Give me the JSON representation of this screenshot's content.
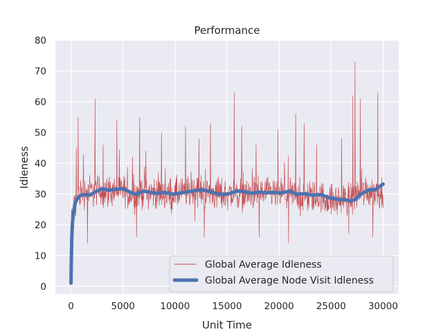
{
  "chart_data": {
    "type": "line",
    "title": "Performance",
    "xlabel": "Unit Time",
    "ylabel": "Idleness",
    "xlim": [
      -1500,
      31500
    ],
    "ylim": [
      -2.5,
      80
    ],
    "xticks": [
      0,
      5000,
      10000,
      15000,
      20000,
      25000,
      30000
    ],
    "yticks": [
      0,
      10,
      20,
      30,
      40,
      50,
      60,
      70,
      80
    ],
    "grid": true,
    "legend": {
      "position": "bottom-right",
      "entries": [
        "Global Average Idleness",
        "Global Average Node Visit Idleness"
      ]
    },
    "colors": {
      "background": "#eaeaf2",
      "grid": "#ffffff",
      "idleness": "#c44e52",
      "visit_idleness": "#4c72b0"
    },
    "series": [
      {
        "name": "Global Average Idleness",
        "style": "thin",
        "x_start": 0,
        "x_step": 30,
        "base_points": [
          [
            0,
            22
          ],
          [
            300,
            26
          ],
          [
            800,
            30
          ],
          [
            1500,
            31
          ],
          [
            2500,
            31
          ],
          [
            3500,
            31
          ],
          [
            5000,
            31
          ],
          [
            6000,
            30
          ],
          [
            7000,
            31
          ],
          [
            9000,
            30
          ],
          [
            10000,
            30
          ],
          [
            12000,
            31
          ],
          [
            14000,
            30
          ],
          [
            15500,
            30
          ],
          [
            17000,
            30
          ],
          [
            19000,
            30
          ],
          [
            20000,
            30
          ],
          [
            21000,
            30
          ],
          [
            22000,
            29
          ],
          [
            24000,
            29
          ],
          [
            25000,
            28
          ],
          [
            26000,
            28
          ],
          [
            27000,
            29
          ],
          [
            28000,
            31
          ],
          [
            29500,
            31
          ],
          [
            30000,
            30
          ]
        ],
        "amplitude": 7,
        "spikes": [
          [
            500,
            45
          ],
          [
            700,
            55
          ],
          [
            1200,
            43
          ],
          [
            2300,
            61
          ],
          [
            3100,
            46
          ],
          [
            4400,
            54
          ],
          [
            5900,
            42
          ],
          [
            6600,
            55
          ],
          [
            7200,
            44
          ],
          [
            8700,
            50
          ],
          [
            11000,
            52
          ],
          [
            12300,
            48
          ],
          [
            13400,
            53
          ],
          [
            15700,
            63
          ],
          [
            16400,
            52
          ],
          [
            17800,
            46
          ],
          [
            19900,
            51
          ],
          [
            21600,
            56
          ],
          [
            22400,
            53
          ],
          [
            23600,
            46
          ],
          [
            26000,
            48
          ],
          [
            27100,
            62
          ],
          [
            27300,
            73
          ],
          [
            27800,
            61
          ],
          [
            29500,
            63
          ],
          [
            1600,
            14
          ],
          [
            6300,
            16
          ],
          [
            12800,
            16
          ],
          [
            18100,
            16
          ],
          [
            20900,
            14
          ],
          [
            26700,
            17
          ],
          [
            29000,
            16
          ]
        ]
      },
      {
        "name": "Global Average Node Visit Idleness",
        "style": "thick",
        "points": [
          [
            0,
            1
          ],
          [
            30,
            8
          ],
          [
            80,
            16
          ],
          [
            150,
            21
          ],
          [
            250,
            24
          ],
          [
            400,
            27
          ],
          [
            600,
            28.5
          ],
          [
            900,
            29.5
          ],
          [
            1300,
            29.8
          ],
          [
            1800,
            29.6
          ],
          [
            2400,
            30.8
          ],
          [
            3000,
            31.7
          ],
          [
            3600,
            31.2
          ],
          [
            4200,
            31.5
          ],
          [
            5000,
            31.7
          ],
          [
            5600,
            30.7
          ],
          [
            6300,
            29.8
          ],
          [
            6900,
            30.9
          ],
          [
            7500,
            30.6
          ],
          [
            8200,
            30.2
          ],
          [
            9000,
            30.5
          ],
          [
            9800,
            29.9
          ],
          [
            10500,
            30.3
          ],
          [
            11200,
            30.7
          ],
          [
            12000,
            31.1
          ],
          [
            12600,
            31.4
          ],
          [
            13300,
            30.8
          ],
          [
            14000,
            30.1
          ],
          [
            14700,
            29.8
          ],
          [
            15300,
            30.2
          ],
          [
            16000,
            31.0
          ],
          [
            16700,
            30.7
          ],
          [
            17400,
            30.2
          ],
          [
            18000,
            30.6
          ],
          [
            18700,
            30.4
          ],
          [
            19500,
            30.5
          ],
          [
            20200,
            30.3
          ],
          [
            21000,
            30.9
          ],
          [
            21700,
            29.9
          ],
          [
            22500,
            30.1
          ],
          [
            23200,
            29.6
          ],
          [
            24000,
            29.8
          ],
          [
            24800,
            28.8
          ],
          [
            25600,
            28.3
          ],
          [
            26400,
            28.1
          ],
          [
            26900,
            27.7
          ],
          [
            27300,
            28.2
          ],
          [
            27700,
            29.5
          ],
          [
            28200,
            30.6
          ],
          [
            28700,
            31.4
          ],
          [
            29200,
            31.3
          ],
          [
            29700,
            32.5
          ],
          [
            30000,
            33.2
          ]
        ]
      }
    ]
  }
}
